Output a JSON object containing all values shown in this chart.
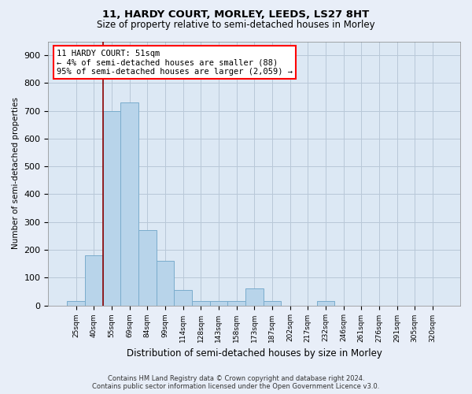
{
  "title1": "11, HARDY COURT, MORLEY, LEEDS, LS27 8HT",
  "title2": "Size of property relative to semi-detached houses in Morley",
  "xlabel": "Distribution of semi-detached houses by size in Morley",
  "ylabel": "Number of semi-detached properties",
  "categories": [
    "25sqm",
    "40sqm",
    "55sqm",
    "69sqm",
    "84sqm",
    "99sqm",
    "114sqm",
    "128sqm",
    "143sqm",
    "158sqm",
    "173sqm",
    "187sqm",
    "202sqm",
    "217sqm",
    "232sqm",
    "246sqm",
    "261sqm",
    "276sqm",
    "291sqm",
    "305sqm",
    "320sqm"
  ],
  "values": [
    15,
    180,
    700,
    730,
    270,
    160,
    55,
    15,
    15,
    15,
    60,
    15,
    0,
    0,
    15,
    0,
    0,
    0,
    0,
    0,
    0
  ],
  "bar_color": "#b8d4ea",
  "bar_edge_color": "#7aaccc",
  "redline_index": 1.5,
  "annotation_text": "11 HARDY COURT: 51sqm\n← 4% of semi-detached houses are smaller (88)\n95% of semi-detached houses are larger (2,059) →",
  "ylim": [
    0,
    950
  ],
  "yticks": [
    0,
    100,
    200,
    300,
    400,
    500,
    600,
    700,
    800,
    900
  ],
  "footer": "Contains HM Land Registry data © Crown copyright and database right 2024.\nContains public sector information licensed under the Open Government Licence v3.0.",
  "bg_color": "#e8eef8",
  "plot_bg_color": "#dce8f4",
  "grid_color": "#b8c8d8"
}
